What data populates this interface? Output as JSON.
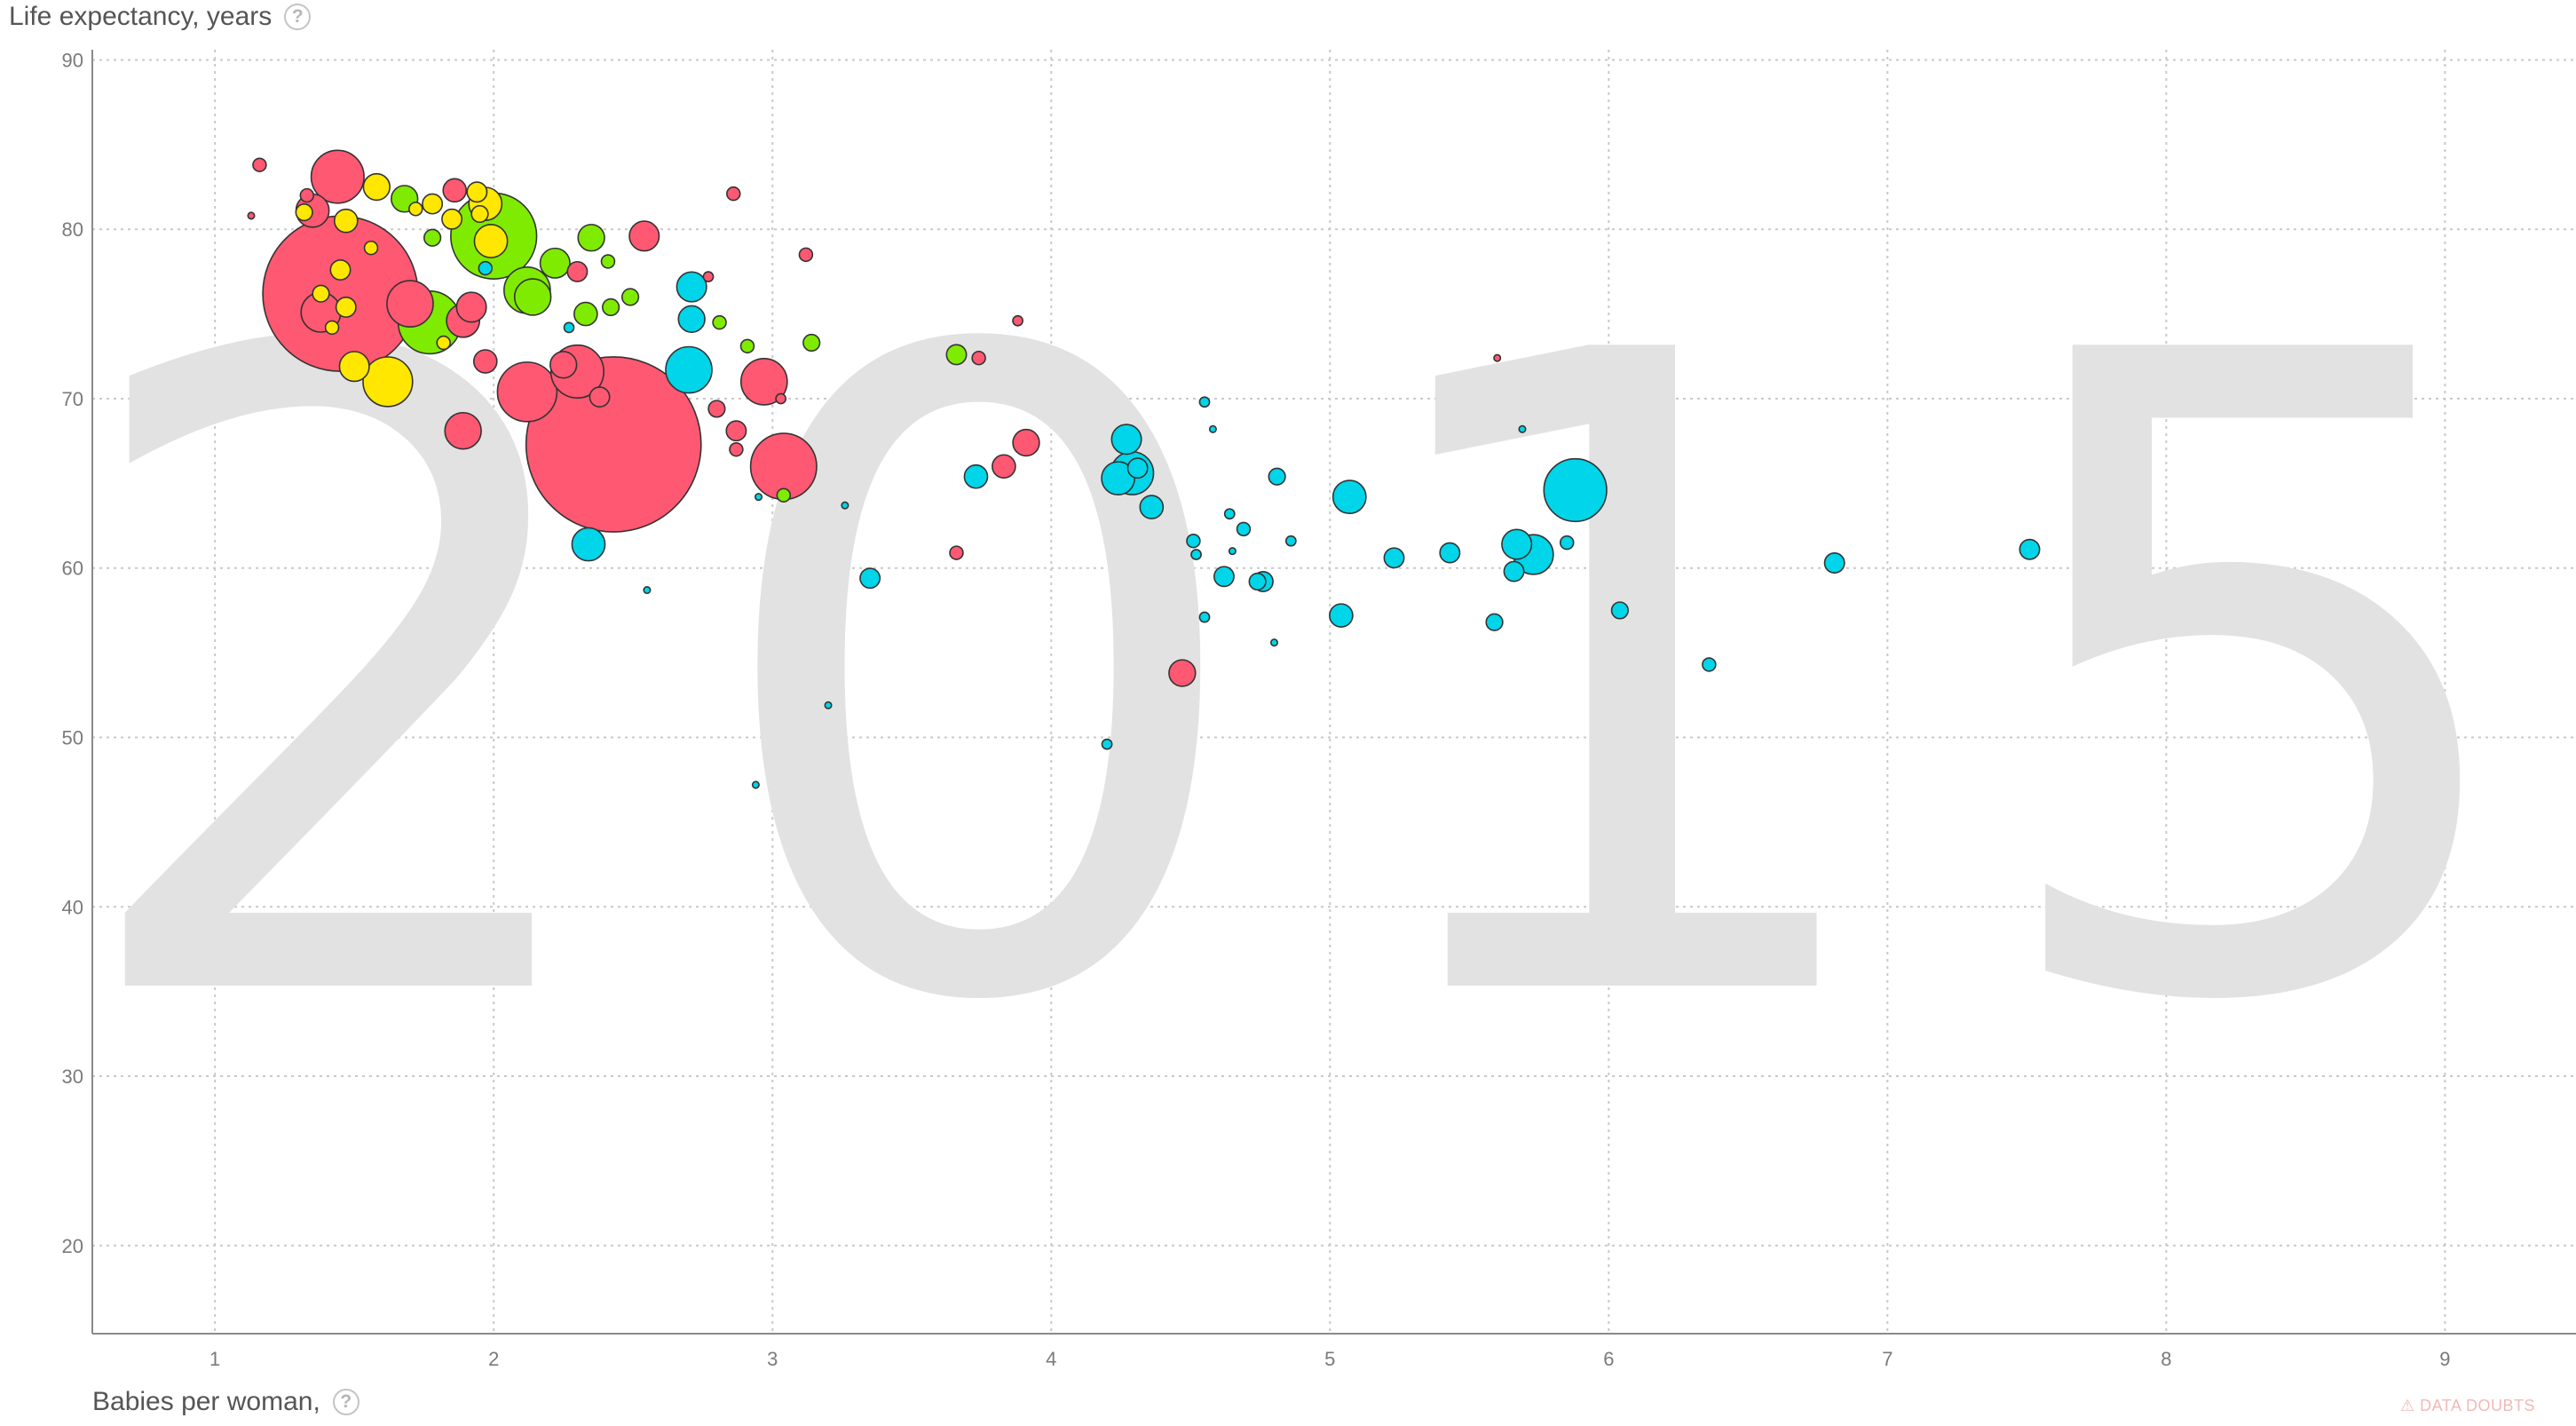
{
  "chart_data": {
    "type": "scatter",
    "title": "",
    "year_watermark": "2015",
    "ylabel": "Life expectancy, years",
    "xlabel": "Babies per woman,",
    "xlim": [
      0.56,
      9.47
    ],
    "ylim": [
      14.8,
      90.6
    ],
    "x_ticks": [
      1,
      2,
      3,
      4,
      5,
      6,
      7,
      8,
      9
    ],
    "y_ticks": [
      20,
      30,
      40,
      50,
      60,
      70,
      80,
      90
    ],
    "grid": true,
    "colors": {
      "red": "#ff5872",
      "yellow": "#ffe700",
      "green": "#7feb00",
      "cyan": "#00d5e9"
    },
    "points": [
      {
        "x": 1.16,
        "y": 83.8,
        "r": 4,
        "c": "red"
      },
      {
        "x": 1.13,
        "y": 80.8,
        "r": 2,
        "c": "red"
      },
      {
        "x": 1.44,
        "y": 83.1,
        "r": 16,
        "c": "red"
      },
      {
        "x": 1.33,
        "y": 82.0,
        "r": 4,
        "c": "red"
      },
      {
        "x": 1.35,
        "y": 81.1,
        "r": 10,
        "c": "red"
      },
      {
        "x": 1.45,
        "y": 76.2,
        "r": 47,
        "c": "red"
      },
      {
        "x": 1.38,
        "y": 75.1,
        "r": 12,
        "c": "red"
      },
      {
        "x": 1.7,
        "y": 75.6,
        "r": 14,
        "c": "red"
      },
      {
        "x": 1.86,
        "y": 82.3,
        "r": 7,
        "c": "red"
      },
      {
        "x": 1.92,
        "y": 75.4,
        "r": 9,
        "c": "red"
      },
      {
        "x": 1.89,
        "y": 74.6,
        "r": 10,
        "c": "red"
      },
      {
        "x": 1.97,
        "y": 72.2,
        "r": 7,
        "c": "red"
      },
      {
        "x": 1.89,
        "y": 68.1,
        "r": 11,
        "c": "red"
      },
      {
        "x": 2.12,
        "y": 70.4,
        "r": 18,
        "c": "red"
      },
      {
        "x": 2.3,
        "y": 71.6,
        "r": 16,
        "c": "red"
      },
      {
        "x": 2.25,
        "y": 72.0,
        "r": 8,
        "c": "red"
      },
      {
        "x": 2.43,
        "y": 67.3,
        "r": 53,
        "c": "red"
      },
      {
        "x": 2.38,
        "y": 70.1,
        "r": 6,
        "c": "red"
      },
      {
        "x": 2.3,
        "y": 77.5,
        "r": 6,
        "c": "red"
      },
      {
        "x": 2.54,
        "y": 79.6,
        "r": 9,
        "c": "red"
      },
      {
        "x": 2.86,
        "y": 82.1,
        "r": 4,
        "c": "red"
      },
      {
        "x": 3.12,
        "y": 78.5,
        "r": 4,
        "c": "red"
      },
      {
        "x": 2.77,
        "y": 77.2,
        "r": 3,
        "c": "red"
      },
      {
        "x": 2.97,
        "y": 71.0,
        "r": 14,
        "c": "red"
      },
      {
        "x": 3.04,
        "y": 66.0,
        "r": 20,
        "c": "red"
      },
      {
        "x": 2.8,
        "y": 69.4,
        "r": 5,
        "c": "red"
      },
      {
        "x": 2.87,
        "y": 68.1,
        "r": 6,
        "c": "red"
      },
      {
        "x": 2.87,
        "y": 67.0,
        "r": 4,
        "c": "red"
      },
      {
        "x": 3.03,
        "y": 70.0,
        "r": 3,
        "c": "red"
      },
      {
        "x": 3.74,
        "y": 72.4,
        "r": 4,
        "c": "red"
      },
      {
        "x": 3.88,
        "y": 74.6,
        "r": 3,
        "c": "red"
      },
      {
        "x": 3.91,
        "y": 67.4,
        "r": 8,
        "c": "red"
      },
      {
        "x": 3.83,
        "y": 66.0,
        "r": 7,
        "c": "red"
      },
      {
        "x": 3.66,
        "y": 60.9,
        "r": 4,
        "c": "red"
      },
      {
        "x": 4.47,
        "y": 53.8,
        "r": 8,
        "c": "red"
      },
      {
        "x": 5.6,
        "y": 72.4,
        "r": 2,
        "c": "red"
      },
      {
        "x": 1.47,
        "y": 80.5,
        "r": 7,
        "c": "yellow"
      },
      {
        "x": 1.58,
        "y": 82.5,
        "r": 8,
        "c": "yellow"
      },
      {
        "x": 1.32,
        "y": 81.0,
        "r": 5,
        "c": "yellow"
      },
      {
        "x": 1.45,
        "y": 77.6,
        "r": 6,
        "c": "yellow"
      },
      {
        "x": 1.47,
        "y": 75.4,
        "r": 6,
        "c": "yellow"
      },
      {
        "x": 1.38,
        "y": 76.2,
        "r": 5,
        "c": "yellow"
      },
      {
        "x": 1.62,
        "y": 71.0,
        "r": 15,
        "c": "yellow"
      },
      {
        "x": 1.5,
        "y": 71.9,
        "r": 9,
        "c": "yellow"
      },
      {
        "x": 1.78,
        "y": 81.5,
        "r": 6,
        "c": "yellow"
      },
      {
        "x": 1.85,
        "y": 80.6,
        "r": 6,
        "c": "yellow"
      },
      {
        "x": 1.94,
        "y": 82.2,
        "r": 6,
        "c": "yellow"
      },
      {
        "x": 1.97,
        "y": 81.5,
        "r": 10,
        "c": "yellow"
      },
      {
        "x": 1.99,
        "y": 79.3,
        "r": 10,
        "c": "yellow"
      },
      {
        "x": 1.82,
        "y": 73.3,
        "r": 4,
        "c": "yellow"
      },
      {
        "x": 1.56,
        "y": 78.9,
        "r": 4,
        "c": "yellow"
      },
      {
        "x": 1.42,
        "y": 74.2,
        "r": 4,
        "c": "yellow"
      },
      {
        "x": 1.72,
        "y": 81.2,
        "r": 4,
        "c": "yellow"
      },
      {
        "x": 1.95,
        "y": 80.9,
        "r": 5,
        "c": "yellow"
      },
      {
        "x": 2.0,
        "y": 79.6,
        "r": 26,
        "c": "green"
      },
      {
        "x": 1.68,
        "y": 81.8,
        "r": 8,
        "c": "green"
      },
      {
        "x": 1.77,
        "y": 74.5,
        "r": 19,
        "c": "green"
      },
      {
        "x": 1.78,
        "y": 79.5,
        "r": 5,
        "c": "green"
      },
      {
        "x": 2.22,
        "y": 78.0,
        "r": 9,
        "c": "green"
      },
      {
        "x": 2.14,
        "y": 76.0,
        "r": 11,
        "c": "green"
      },
      {
        "x": 2.12,
        "y": 76.4,
        "r": 14,
        "c": "green"
      },
      {
        "x": 2.35,
        "y": 79.5,
        "r": 8,
        "c": "green"
      },
      {
        "x": 2.33,
        "y": 75.0,
        "r": 7,
        "c": "green"
      },
      {
        "x": 2.42,
        "y": 75.4,
        "r": 5,
        "c": "green"
      },
      {
        "x": 2.49,
        "y": 76.0,
        "r": 5,
        "c": "green"
      },
      {
        "x": 2.41,
        "y": 78.1,
        "r": 4,
        "c": "green"
      },
      {
        "x": 2.81,
        "y": 74.5,
        "r": 4,
        "c": "green"
      },
      {
        "x": 2.91,
        "y": 73.1,
        "r": 4,
        "c": "green"
      },
      {
        "x": 3.14,
        "y": 73.3,
        "r": 5,
        "c": "green"
      },
      {
        "x": 3.66,
        "y": 72.6,
        "r": 6,
        "c": "green"
      },
      {
        "x": 3.04,
        "y": 64.3,
        "r": 4,
        "c": "green"
      },
      {
        "x": 2.7,
        "y": 71.7,
        "r": 14,
        "c": "cyan"
      },
      {
        "x": 2.71,
        "y": 76.6,
        "r": 9,
        "c": "cyan"
      },
      {
        "x": 2.71,
        "y": 74.7,
        "r": 8,
        "c": "cyan"
      },
      {
        "x": 2.27,
        "y": 74.2,
        "r": 3,
        "c": "cyan"
      },
      {
        "x": 2.34,
        "y": 61.4,
        "r": 10,
        "c": "cyan"
      },
      {
        "x": 2.55,
        "y": 58.7,
        "r": 2,
        "c": "cyan"
      },
      {
        "x": 1.97,
        "y": 77.7,
        "r": 4,
        "c": "cyan"
      },
      {
        "x": 3.35,
        "y": 59.4,
        "r": 6,
        "c": "cyan"
      },
      {
        "x": 3.73,
        "y": 65.4,
        "r": 7,
        "c": "cyan"
      },
      {
        "x": 4.27,
        "y": 67.6,
        "r": 9,
        "c": "cyan"
      },
      {
        "x": 4.24,
        "y": 65.3,
        "r": 10,
        "c": "cyan"
      },
      {
        "x": 4.29,
        "y": 65.6,
        "r": 13,
        "c": "cyan"
      },
      {
        "x": 4.36,
        "y": 63.6,
        "r": 7,
        "c": "cyan"
      },
      {
        "x": 4.31,
        "y": 65.9,
        "r": 6,
        "c": "cyan"
      },
      {
        "x": 4.55,
        "y": 69.8,
        "r": 3,
        "c": "cyan"
      },
      {
        "x": 4.58,
        "y": 68.2,
        "r": 2,
        "c": "cyan"
      },
      {
        "x": 4.51,
        "y": 61.6,
        "r": 4,
        "c": "cyan"
      },
      {
        "x": 4.52,
        "y": 60.8,
        "r": 3,
        "c": "cyan"
      },
      {
        "x": 4.64,
        "y": 63.2,
        "r": 3,
        "c": "cyan"
      },
      {
        "x": 4.69,
        "y": 62.3,
        "r": 4,
        "c": "cyan"
      },
      {
        "x": 4.65,
        "y": 61.0,
        "r": 2,
        "c": "cyan"
      },
      {
        "x": 4.62,
        "y": 59.5,
        "r": 6,
        "c": "cyan"
      },
      {
        "x": 4.74,
        "y": 59.2,
        "r": 5,
        "c": "cyan"
      },
      {
        "x": 4.76,
        "y": 59.2,
        "r": 6,
        "c": "cyan"
      },
      {
        "x": 4.55,
        "y": 57.1,
        "r": 3,
        "c": "cyan"
      },
      {
        "x": 4.8,
        "y": 55.6,
        "r": 2,
        "c": "cyan"
      },
      {
        "x": 4.81,
        "y": 65.4,
        "r": 5,
        "c": "cyan"
      },
      {
        "x": 4.86,
        "y": 61.6,
        "r": 3,
        "c": "cyan"
      },
      {
        "x": 5.07,
        "y": 64.2,
        "r": 10,
        "c": "cyan"
      },
      {
        "x": 5.04,
        "y": 57.2,
        "r": 7,
        "c": "cyan"
      },
      {
        "x": 5.23,
        "y": 60.6,
        "r": 6,
        "c": "cyan"
      },
      {
        "x": 5.43,
        "y": 60.9,
        "r": 6,
        "c": "cyan"
      },
      {
        "x": 5.67,
        "y": 61.4,
        "r": 9,
        "c": "cyan"
      },
      {
        "x": 5.73,
        "y": 60.8,
        "r": 12,
        "c": "cyan"
      },
      {
        "x": 5.66,
        "y": 59.8,
        "r": 6,
        "c": "cyan"
      },
      {
        "x": 5.59,
        "y": 56.8,
        "r": 5,
        "c": "cyan"
      },
      {
        "x": 5.88,
        "y": 64.6,
        "r": 19,
        "c": "cyan"
      },
      {
        "x": 5.85,
        "y": 61.5,
        "r": 4,
        "c": "cyan"
      },
      {
        "x": 6.04,
        "y": 57.5,
        "r": 5,
        "c": "cyan"
      },
      {
        "x": 5.69,
        "y": 68.2,
        "r": 2,
        "c": "cyan"
      },
      {
        "x": 6.36,
        "y": 54.3,
        "r": 4,
        "c": "cyan"
      },
      {
        "x": 6.81,
        "y": 60.3,
        "r": 6,
        "c": "cyan"
      },
      {
        "x": 7.51,
        "y": 61.1,
        "r": 6,
        "c": "cyan"
      },
      {
        "x": 4.2,
        "y": 49.6,
        "r": 3,
        "c": "cyan"
      },
      {
        "x": 2.94,
        "y": 47.2,
        "r": 2,
        "c": "cyan"
      },
      {
        "x": 3.2,
        "y": 51.9,
        "r": 2,
        "c": "cyan"
      },
      {
        "x": 2.95,
        "y": 64.2,
        "r": 2,
        "c": "cyan"
      },
      {
        "x": 3.26,
        "y": 63.7,
        "r": 2,
        "c": "cyan"
      }
    ]
  },
  "ui": {
    "y_axis_title": "Life expectancy, years",
    "x_axis_title": "Babies per woman,",
    "help_glyph": "?",
    "data_doubts": "DATA DOUBTS",
    "data_doubts_icon": "warning-triangle-icon"
  }
}
